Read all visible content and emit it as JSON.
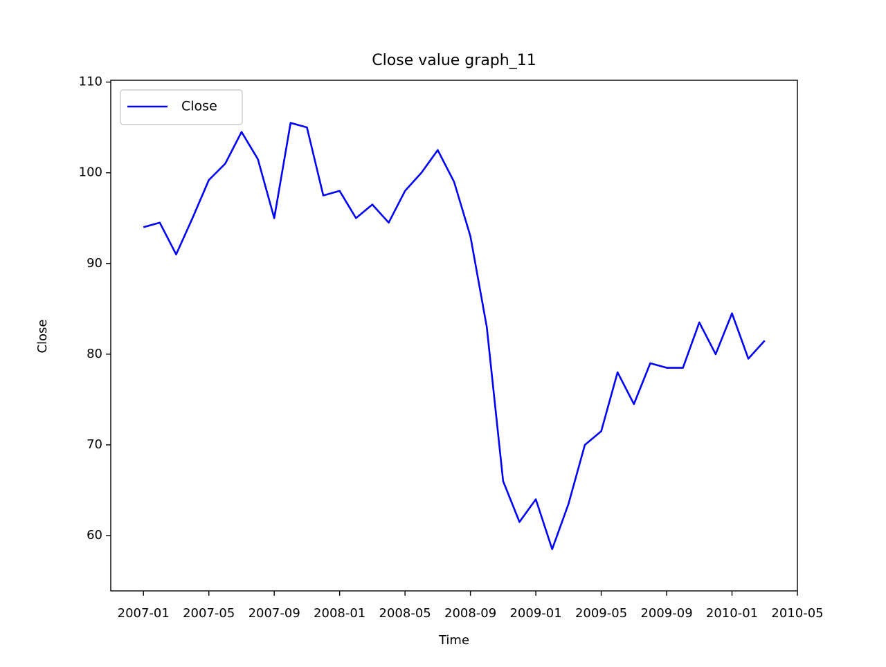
{
  "chart_data": {
    "type": "line",
    "title": "Close value graph_11",
    "xlabel": "Time",
    "ylabel": "Close",
    "x": [
      "2007-01",
      "2007-02",
      "2007-03",
      "2007-04",
      "2007-05",
      "2007-06",
      "2007-07",
      "2007-08",
      "2007-09",
      "2007-10",
      "2007-11",
      "2007-12",
      "2008-01",
      "2008-02",
      "2008-03",
      "2008-04",
      "2008-05",
      "2008-06",
      "2008-07",
      "2008-08",
      "2008-09",
      "2008-10",
      "2008-11",
      "2008-12",
      "2009-01",
      "2009-02",
      "2009-03",
      "2009-04",
      "2009-05",
      "2009-06",
      "2009-07",
      "2009-08",
      "2009-09",
      "2009-10",
      "2009-11",
      "2009-12",
      "2010-01",
      "2010-02",
      "2010-03"
    ],
    "series": [
      {
        "name": "Close",
        "color": "#0000ff",
        "values": [
          94,
          94.5,
          91,
          95,
          99.2,
          101,
          104.5,
          101.5,
          95,
          105.5,
          105,
          97.5,
          98,
          95,
          96.5,
          94.5,
          98,
          100,
          102.5,
          99,
          93,
          83,
          66,
          61.5,
          64,
          58.5,
          63.5,
          70,
          71.5,
          78,
          74.5,
          79,
          78.5,
          78.5,
          83.5,
          80,
          84.5,
          79.5,
          81.5
        ]
      }
    ],
    "xlim": [
      "2006-11",
      "2010-05"
    ],
    "xticks": [
      "2007-01",
      "2007-05",
      "2007-09",
      "2008-01",
      "2008-05",
      "2008-09",
      "2009-01",
      "2009-05",
      "2009-09",
      "2010-01",
      "2010-05"
    ],
    "ylim": [
      53.9,
      110.2
    ],
    "yticks": [
      60,
      70,
      80,
      90,
      100,
      110
    ],
    "legend": "upper left"
  }
}
